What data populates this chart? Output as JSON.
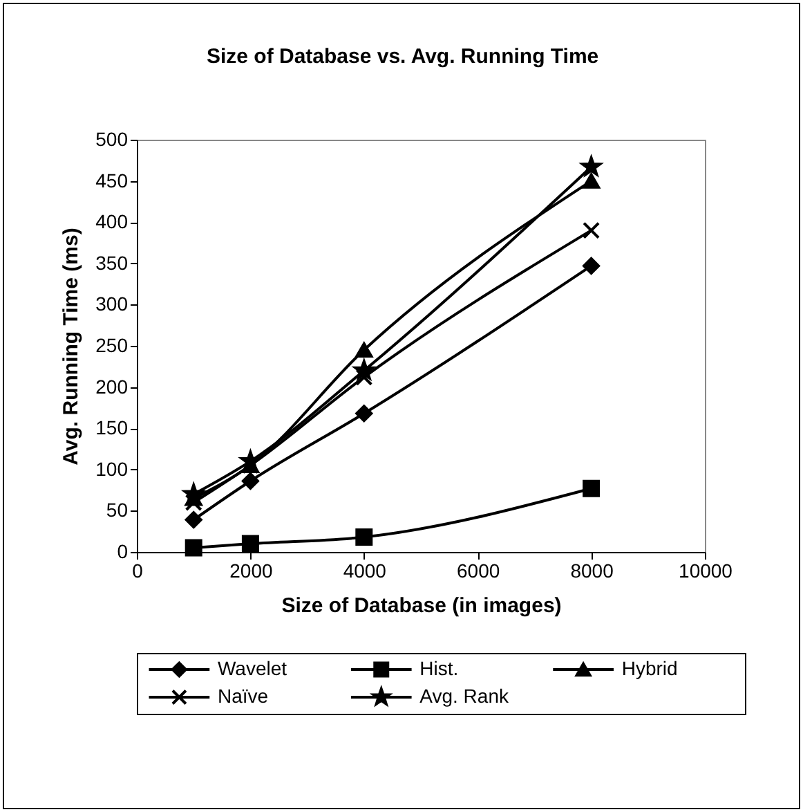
{
  "chart_data": {
    "type": "line",
    "title": "Size of Database vs. Avg. Running Time",
    "xlabel": "Size of Database (in images)",
    "ylabel": "Avg. Running Time (ms)",
    "x": [
      1000,
      2000,
      4000,
      8000
    ],
    "series": [
      {
        "name": "Wavelet",
        "color": "#000000",
        "marker": "diamond",
        "values": [
          39,
          86,
          168,
          347
        ]
      },
      {
        "name": "Hist.",
        "color": "#000000",
        "marker": "square",
        "values": [
          5,
          10,
          18,
          77
        ]
      },
      {
        "name": "Hybrid",
        "color": "#000000",
        "marker": "triangle",
        "values": [
          65,
          105,
          245,
          450
        ]
      },
      {
        "name": "Naïve",
        "color": "#000000",
        "marker": "cross",
        "values": [
          60,
          105,
          212,
          390
        ]
      },
      {
        "name": "Avg. Rank",
        "color": "#000000",
        "marker": "star",
        "values": [
          70,
          110,
          220,
          467
        ]
      }
    ],
    "xlim": [
      0,
      10000
    ],
    "xticks": [
      0,
      2000,
      4000,
      6000,
      8000,
      10000
    ],
    "ylim": [
      0,
      500
    ],
    "yticks": [
      0,
      50,
      100,
      150,
      200,
      250,
      300,
      350,
      400,
      450,
      500
    ],
    "grid": false,
    "legend": "bottom",
    "line_style": "solid"
  }
}
